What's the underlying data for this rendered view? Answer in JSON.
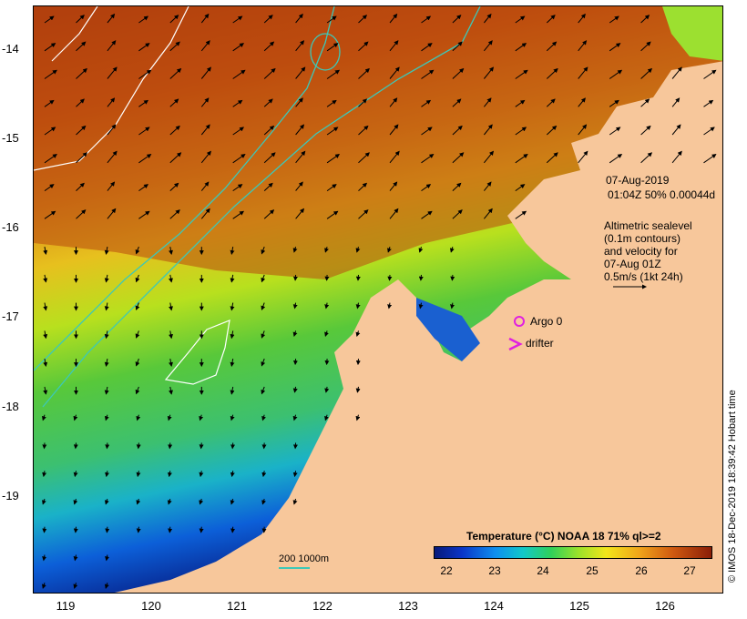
{
  "map": {
    "lat_ticks": [
      "-14",
      "-15",
      "-16",
      "-17",
      "-18",
      "-19"
    ],
    "lon_ticks": [
      "119",
      "120",
      "121",
      "122",
      "123",
      "124",
      "125",
      "126"
    ],
    "extent": {
      "lon": [
        118.65,
        126.7
      ],
      "lat": [
        -20.1,
        -13.55
      ]
    }
  },
  "annotation": {
    "date": "07-Aug-2019",
    "time_line": "01:04Z  50% 0.00044d",
    "alt_line1": "Altimetric sealevel",
    "alt_line2": "(0.1m contours)",
    "alt_line3": "and velocity for",
    "alt_line4": "07-Aug 01Z",
    "alt_line5": "0.5m/s (1kt 24h)"
  },
  "legend": {
    "argo_label": "Argo 0",
    "drifter_label": "drifter",
    "argo_color": "#e020e0",
    "drifter_color": "#e020e0"
  },
  "colorbar": {
    "title": "Temperature (°C) NOAA 18 71% ql>=2",
    "ticks": [
      "22",
      "23",
      "24",
      "25",
      "26",
      "27"
    ]
  },
  "scale": {
    "label": "200  1000m",
    "color": "#3cc8b8"
  },
  "credit": "© IMOS 18-Dec-2019 18:39:42 Hobart time",
  "colors": {
    "land": "#f7c79b",
    "contour": "#ffffff",
    "isobath": "#3cc8b8"
  }
}
